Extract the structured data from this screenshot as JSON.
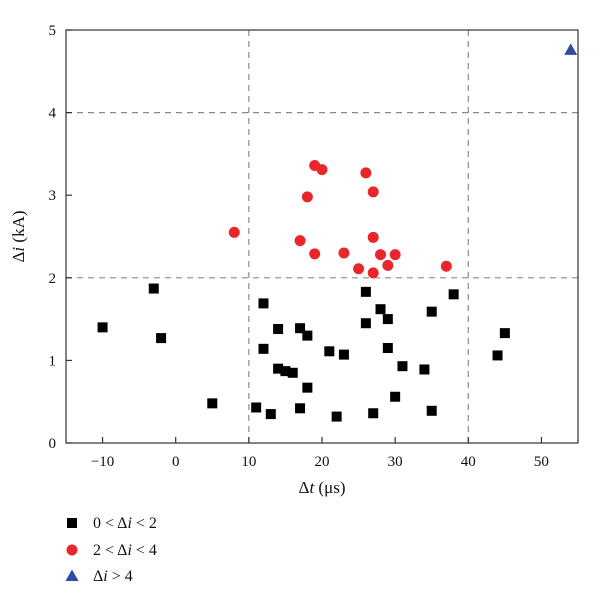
{
  "chart_data": {
    "type": "scatter",
    "title": "",
    "xlabel": {
      "prefix": "Δ",
      "var": "t",
      "unit": " (μs)"
    },
    "ylabel": {
      "prefix": "Δ",
      "var": "i",
      "unit": " (kA)"
    },
    "xlim": [
      -15,
      55
    ],
    "ylim": [
      0,
      5
    ],
    "xticks": [
      -10,
      0,
      10,
      20,
      30,
      40,
      50
    ],
    "yticks": [
      0,
      1,
      2,
      3,
      4,
      5
    ],
    "xtick_labels": [
      "−10",
      "0",
      "10",
      "20",
      "30",
      "40",
      "50"
    ],
    "ytick_labels": [
      "0",
      "1",
      "2",
      "3",
      "4",
      "5"
    ],
    "reference_lines": {
      "x": [
        10,
        40
      ],
      "y": [
        2,
        4
      ],
      "style": "dashed"
    },
    "grid": false,
    "legend_position": "bottom-left-outside",
    "series": [
      {
        "name": {
          "lo": "0 < Δ",
          "var": "i",
          "hi": " < 2"
        },
        "marker": "square",
        "color": "#000000",
        "points": [
          [
            -10,
            1.4
          ],
          [
            -3,
            1.87
          ],
          [
            -2,
            1.27
          ],
          [
            5,
            0.48
          ],
          [
            11,
            0.43
          ],
          [
            12,
            1.69
          ],
          [
            12,
            1.14
          ],
          [
            13,
            0.35
          ],
          [
            14,
            1.38
          ],
          [
            14,
            0.9
          ],
          [
            15,
            0.87
          ],
          [
            16,
            0.85
          ],
          [
            17,
            1.39
          ],
          [
            17,
            0.42
          ],
          [
            18,
            1.3
          ],
          [
            18,
            0.67
          ],
          [
            21,
            1.11
          ],
          [
            22,
            0.32
          ],
          [
            23,
            1.07
          ],
          [
            26,
            1.83
          ],
          [
            26,
            1.45
          ],
          [
            27,
            0.36
          ],
          [
            28,
            1.62
          ],
          [
            29,
            1.5
          ],
          [
            29,
            1.15
          ],
          [
            30,
            0.56
          ],
          [
            31,
            0.93
          ],
          [
            34,
            0.89
          ],
          [
            35,
            1.59
          ],
          [
            35,
            0.39
          ],
          [
            38,
            1.8
          ],
          [
            44,
            1.06
          ],
          [
            45,
            1.33
          ]
        ]
      },
      {
        "name": {
          "lo": "2 < Δ",
          "var": "i",
          "hi": " < 4"
        },
        "marker": "circle",
        "color": "#e8262b",
        "points": [
          [
            8,
            2.55
          ],
          [
            17,
            2.45
          ],
          [
            18,
            2.98
          ],
          [
            19,
            3.36
          ],
          [
            19,
            2.29
          ],
          [
            20,
            3.31
          ],
          [
            23,
            2.3
          ],
          [
            25,
            2.11
          ],
          [
            26,
            3.27
          ],
          [
            27,
            3.04
          ],
          [
            27,
            2.49
          ],
          [
            27,
            2.06
          ],
          [
            28,
            2.28
          ],
          [
            29,
            2.15
          ],
          [
            30,
            2.28
          ],
          [
            37,
            2.14
          ]
        ]
      },
      {
        "name": {
          "lo": "Δ",
          "var": "i",
          "hi": " > 4"
        },
        "marker": "triangle",
        "color": "#2e4da1",
        "points": [
          [
            54,
            4.76
          ]
        ]
      }
    ]
  }
}
